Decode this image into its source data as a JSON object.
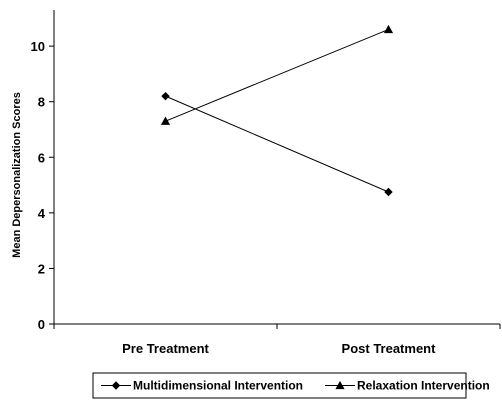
{
  "chart_data": {
    "type": "line",
    "categories": [
      "Pre Treatment",
      "Post Treatment"
    ],
    "series": [
      {
        "name": "Multidimensional Intervention",
        "marker": "diamond",
        "values": [
          8.2,
          4.75
        ]
      },
      {
        "name": "Relaxation Intervention",
        "marker": "triangle",
        "values": [
          7.3,
          10.6
        ]
      }
    ],
    "ylabel": "Mean Depersonalization Scores",
    "xlabel": "",
    "ylim": [
      0,
      11.3
    ],
    "yticks": [
      0,
      2,
      4,
      6,
      8,
      10
    ],
    "grid": false,
    "legend": "bottom",
    "colors": {
      "line": "#000000",
      "marker": "#000000"
    }
  }
}
